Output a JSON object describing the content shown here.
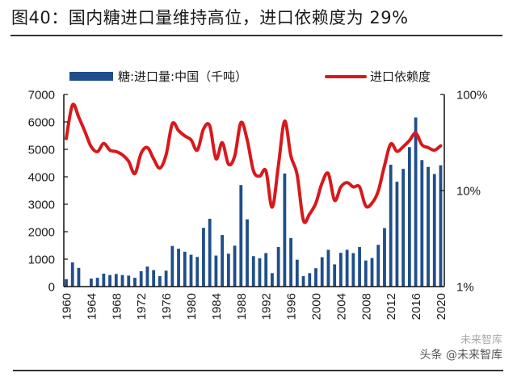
{
  "figure": {
    "title": "图40：国内糖进口量维持高位，进口依赖度为 29%",
    "watermark": "头条 @未来智库",
    "watermark_ghost": "未来智库"
  },
  "chart_data": {
    "type": "bar+line",
    "title": "图40：国内糖进口量维持高位，进口依赖度为 29%",
    "x": [
      1960,
      1961,
      1962,
      1963,
      1964,
      1965,
      1966,
      1967,
      1968,
      1969,
      1970,
      1971,
      1972,
      1973,
      1974,
      1975,
      1976,
      1977,
      1978,
      1979,
      1980,
      1981,
      1982,
      1983,
      1984,
      1985,
      1986,
      1987,
      1988,
      1989,
      1990,
      1991,
      1992,
      1993,
      1994,
      1995,
      1996,
      1997,
      1998,
      1999,
      2000,
      2001,
      2002,
      2003,
      2004,
      2005,
      2006,
      2007,
      2008,
      2009,
      2010,
      2011,
      2012,
      2013,
      2014,
      2015,
      2016,
      2017,
      2018,
      2019,
      2020
    ],
    "x_ticks": [
      "1960",
      "1964",
      "1968",
      "1972",
      "1976",
      "1980",
      "1984",
      "1988",
      "1992",
      "1996",
      "2000",
      "2004",
      "2008",
      "2012",
      "2016",
      "2020"
    ],
    "series": [
      {
        "name": "糖:进口量:中国（千吨）",
        "type": "bar",
        "axis": "left",
        "color": "#1f4e8c",
        "values": [
          270,
          880,
          680,
          0,
          290,
          320,
          470,
          420,
          460,
          420,
          400,
          320,
          560,
          730,
          600,
          380,
          580,
          1480,
          1380,
          1270,
          1160,
          1080,
          2140,
          2470,
          1130,
          1880,
          1200,
          1490,
          3700,
          2450,
          1110,
          1030,
          1220,
          490,
          1440,
          4120,
          1770,
          980,
          380,
          490,
          670,
          1070,
          1340,
          810,
          1230,
          1340,
          1220,
          1440,
          950,
          1040,
          1520,
          2130,
          4440,
          3820,
          4290,
          5080,
          6160,
          4610,
          4360,
          4100,
          4420
        ]
      },
      {
        "name": "进口依赖度",
        "type": "line",
        "axis": "right",
        "color": "#d7191c",
        "unit": "%",
        "values": [
          34.7,
          77.8,
          58,
          41,
          28.6,
          25.4,
          30.9,
          26.3,
          25.4,
          23.5,
          20.1,
          15,
          24.4,
          28,
          21.4,
          17.1,
          23.5,
          49.5,
          42,
          37,
          33.7,
          26.3,
          43.6,
          47,
          21.4,
          31.5,
          18.8,
          22.9,
          51,
          33.7,
          16,
          14.1,
          16,
          6.7,
          18.2,
          52.8,
          22.9,
          14.6,
          4.9,
          5.7,
          7.4,
          12,
          15,
          7.9,
          10.9,
          12.1,
          10.9,
          10.9,
          6.9,
          7.4,
          9.9,
          18.2,
          30.5,
          25.6,
          28.6,
          33.2,
          39.5,
          29.9,
          28,
          26.3,
          29.2
        ]
      }
    ],
    "left_axis": {
      "ylim": [
        0,
        7000
      ],
      "ticks": [
        "0",
        "1000",
        "2000",
        "3000",
        "4000",
        "5000",
        "6000",
        "7000"
      ],
      "scale": "linear"
    },
    "right_axis": {
      "ylim": [
        1,
        100
      ],
      "ticks": [
        "1%",
        "10%",
        "100%"
      ],
      "scale": "log"
    },
    "legend": {
      "position": "top",
      "entries": [
        {
          "label": "糖:进口量:中国（千吨）",
          "color": "#1f4e8c"
        },
        {
          "label": "进口依赖度",
          "color": "#d7191c"
        }
      ]
    },
    "grid": false,
    "xlabel": "",
    "ylabel": ""
  }
}
